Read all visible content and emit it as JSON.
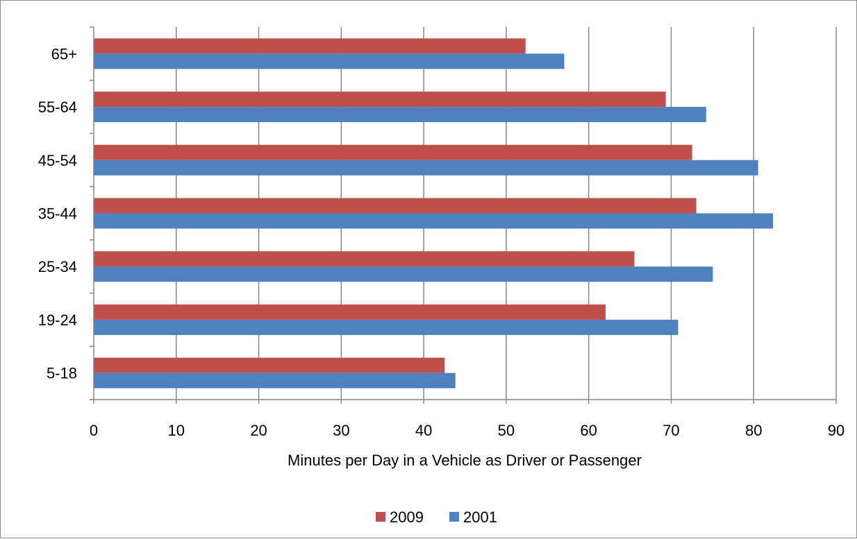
{
  "chart_data": {
    "type": "bar",
    "orientation": "horizontal",
    "categories": [
      "5-18",
      "19-24",
      "25-34",
      "35-44",
      "45-54",
      "55-64",
      "65+"
    ],
    "series": [
      {
        "name": "2009",
        "color": "#c0504d",
        "values": [
          42.5,
          62,
          65.5,
          73,
          72.5,
          69.3,
          52.3
        ]
      },
      {
        "name": "2001",
        "color": "#4f81bd",
        "values": [
          43.8,
          70.8,
          75,
          82.3,
          80.5,
          74.2,
          57
        ]
      }
    ],
    "title": "",
    "xlabel": "Minutes per Day in a Vehicle as Driver or Passenger",
    "ylabel": "",
    "xlim": [
      0,
      90
    ],
    "xticks": [
      "0",
      "10",
      "20",
      "30",
      "40",
      "50",
      "60",
      "70",
      "80",
      "90"
    ],
    "grid": "vertical major gridlines",
    "legend_position": "bottom"
  }
}
